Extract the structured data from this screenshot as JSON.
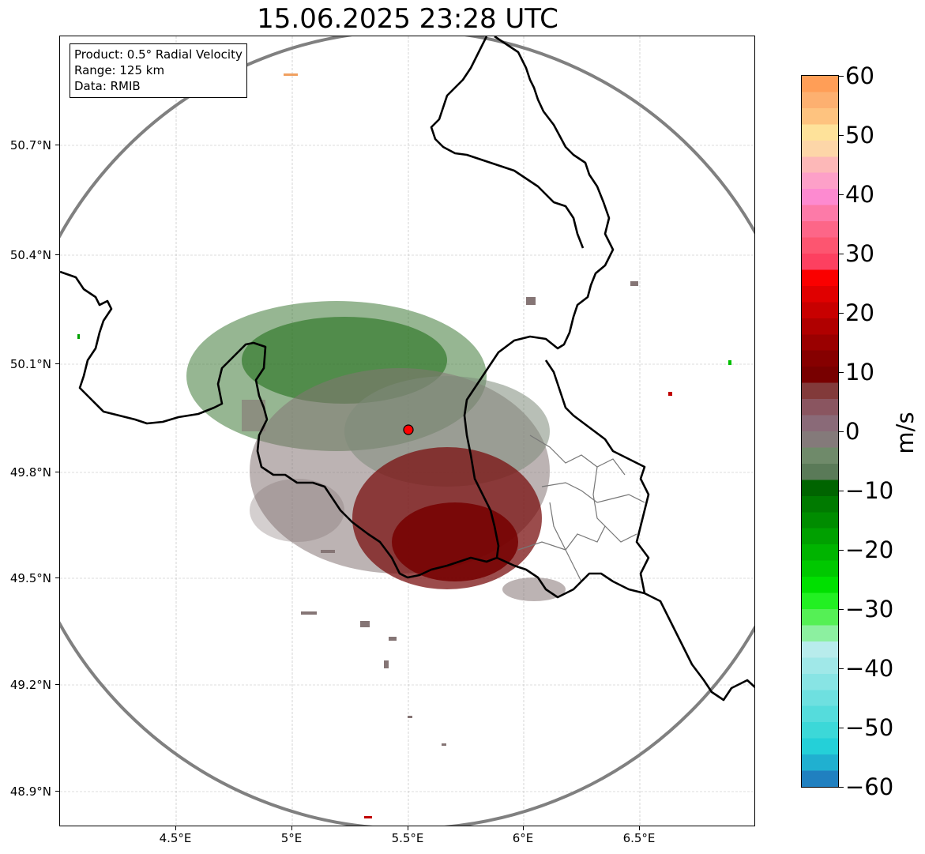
{
  "title": "15.06.2025 23:28 UTC",
  "infobox": {
    "product": "Product: 0.5° Radial Velocity",
    "range": "Range: 125 km",
    "data": "Data: RMIB"
  },
  "latitude_labels": [
    "50.7°N",
    "50.4°N",
    "50.1°N",
    "49.8°N",
    "49.5°N",
    "49.2°N",
    "48.9°N"
  ],
  "longitude_labels": [
    "4.5°E",
    "5°E",
    "5.5°E",
    "6°E",
    "6.5°E"
  ],
  "colorbar": {
    "unit": "m/s",
    "ticks": [
      "60",
      "50",
      "40",
      "30",
      "20",
      "10",
      "0",
      "−10",
      "−20",
      "−30",
      "−40",
      "−50",
      "−60"
    ],
    "colors": [
      "#ff9e57",
      "#fdb070",
      "#fec37f",
      "#fee29a",
      "#fdd6a8",
      "#fdb8b8",
      "#fda0c8",
      "#fd8ad0",
      "#fd7aa8",
      "#fd6688",
      "#fd5570",
      "#fd4060",
      "#fa0000",
      "#e00000",
      "#c80000",
      "#b00000",
      "#9a0000",
      "#860000",
      "#780000",
      "#823a3a",
      "#8a5560",
      "#8a6a78",
      "#847a7a",
      "#6f8a6a",
      "#5a7a58",
      "#006400",
      "#007a00",
      "#008c00",
      "#00a000",
      "#00b400",
      "#00c800",
      "#00e000",
      "#22f022",
      "#55f055",
      "#8cf0a0",
      "#b8ecec",
      "#a0e8e8",
      "#88e4e4",
      "#6ee0e0",
      "#55dcdc",
      "#3cd8d8",
      "#24d0d8",
      "#20b0d0",
      "#2080c0"
    ]
  },
  "radar_site": {
    "lon": 5.5,
    "lat": 49.91
  }
}
